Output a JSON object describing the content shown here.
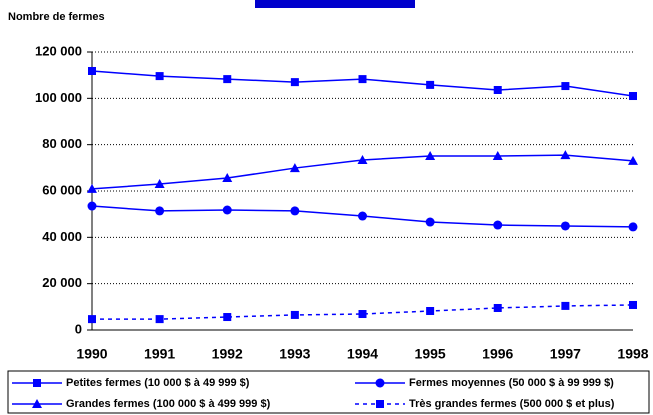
{
  "chart_data": {
    "type": "line",
    "y_label": "Nombre de fermes",
    "categories": [
      "1990",
      "1991",
      "1992",
      "1993",
      "1994",
      "1995",
      "1996",
      "1997",
      "1998"
    ],
    "series": [
      {
        "name": "Petites fermes (10 000 $ à 49 999 $)",
        "color": "#0000ff",
        "marker": "square",
        "dashed": false,
        "values": [
          111800,
          109600,
          108300,
          107000,
          108300,
          105800,
          103600,
          105300,
          101000
        ]
      },
      {
        "name": "Fermes moyennes (50 000 $ à 99 999 $)",
        "color": "#0000ff",
        "marker": "circle",
        "dashed": false,
        "values": [
          53500,
          51400,
          51800,
          51400,
          49200,
          46600,
          45300,
          44900,
          44500
        ]
      },
      {
        "name": "Grandes fermes (100 000 $ à 499 999 $)",
        "color": "#0000ff",
        "marker": "triangle",
        "dashed": false,
        "values": [
          60900,
          63000,
          65600,
          69900,
          73400,
          75100,
          75100,
          75500,
          73000
        ]
      },
      {
        "name": "Très grandes fermes (500 000 $ et plus)",
        "color": "#0000ff",
        "marker": "square",
        "dashed": true,
        "values": [
          4700,
          4700,
          5600,
          6500,
          6900,
          8200,
          9500,
          10400,
          10800
        ]
      }
    ],
    "ylim": [
      0,
      120000
    ],
    "yticks": [
      0,
      {
        "value": 20000,
        "label": "20 000"
      },
      {
        "value": 40000,
        "label": "40 000"
      },
      {
        "value": 60000,
        "label": "60 000"
      },
      {
        "value": 80000,
        "label": "80 000"
      },
      {
        "value": 100000,
        "label": "100 000"
      },
      {
        "value": 120000,
        "label": "120 000"
      }
    ],
    "grid": true
  }
}
